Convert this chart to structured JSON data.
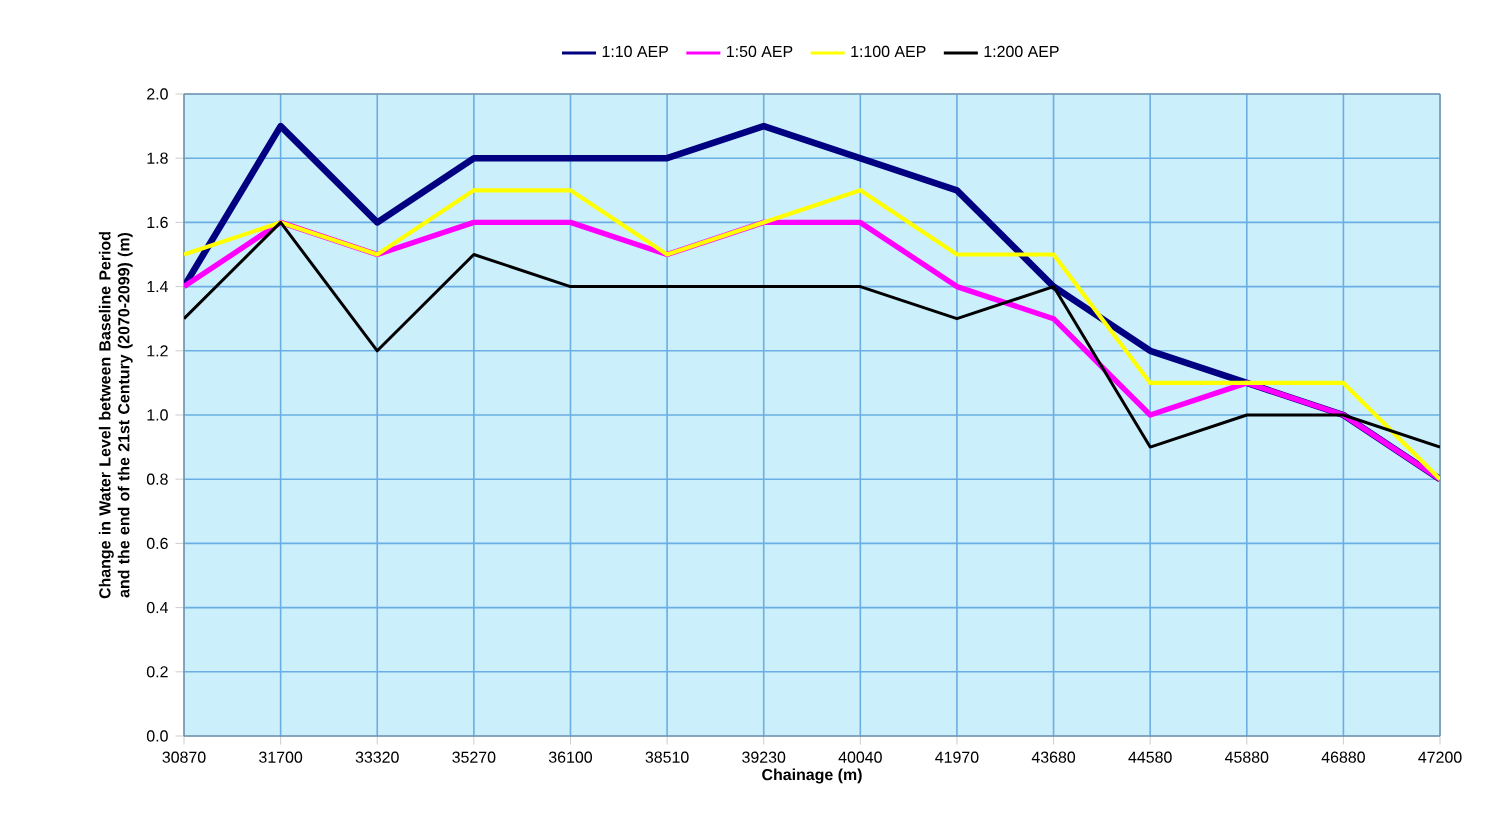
{
  "chart_data": {
    "type": "line",
    "xlabel": "Chainage (m)",
    "ylabel": "Change in Water Level between Baseline Period and the end of the 21st Century (2070-2099) (m)",
    "categories": [
      "30870",
      "31700",
      "33320",
      "35270",
      "36100",
      "38510",
      "39230",
      "40040",
      "41970",
      "43680",
      "44580",
      "45880",
      "46880",
      "47200"
    ],
    "series": [
      {
        "name": "1:10 AEP",
        "color": "#000080",
        "values": [
          1.4,
          1.9,
          1.6,
          1.8,
          1.8,
          1.8,
          1.9,
          1.8,
          1.7,
          1.4,
          1.2,
          1.1,
          1.0,
          0.8
        ]
      },
      {
        "name": "1:50 AEP",
        "color": "#ff00ff",
        "values": [
          1.4,
          1.6,
          1.5,
          1.6,
          1.6,
          1.5,
          1.6,
          1.6,
          1.4,
          1.3,
          1.0,
          1.1,
          1.0,
          0.8
        ]
      },
      {
        "name": "1:100 AEP",
        "color": "#ffff00",
        "values": [
          1.5,
          1.6,
          1.5,
          1.7,
          1.7,
          1.5,
          1.6,
          1.7,
          1.5,
          1.5,
          1.1,
          1.1,
          1.1,
          0.8
        ]
      },
      {
        "name": "1:200 AEP",
        "color": "#000000",
        "values": [
          1.3,
          1.6,
          1.2,
          1.5,
          1.4,
          1.4,
          1.4,
          1.4,
          1.3,
          1.4,
          0.9,
          1.0,
          1.0,
          0.9
        ]
      }
    ],
    "ylim": [
      0,
      2.0
    ],
    "yticks": [
      {
        "value": 0,
        "label": "0.0"
      },
      {
        "value": 0.2,
        "label": "0.2"
      },
      {
        "value": 0.4,
        "label": "0.4"
      },
      {
        "value": 0.6,
        "label": "0.6"
      },
      {
        "value": 0.8,
        "label": "0.8"
      },
      {
        "value": 1.0,
        "label": "1.0"
      },
      {
        "value": 1.2,
        "label": "1.2"
      },
      {
        "value": 1.4,
        "label": "1.4"
      },
      {
        "value": 1.6,
        "label": "1.6"
      },
      {
        "value": 1.8,
        "label": "1.8"
      },
      {
        "value": 2.0,
        "label": "2.0"
      }
    ],
    "grid": true,
    "legend": "top",
    "marker": "none",
    "line_style": "solid"
  }
}
